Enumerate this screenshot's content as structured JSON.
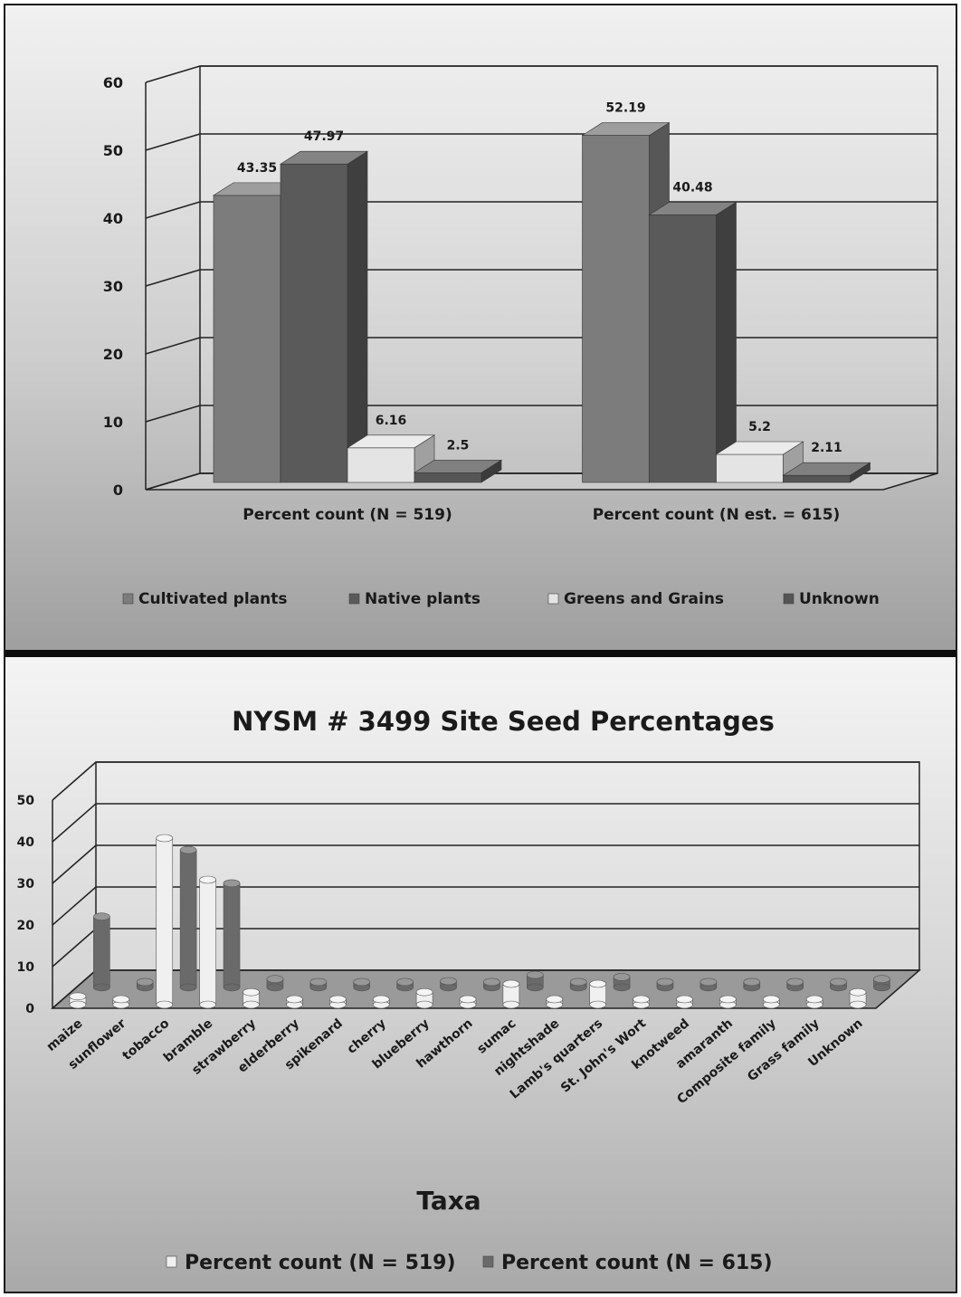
{
  "chart_data": [
    {
      "type": "bar",
      "title": "",
      "xlabel": "",
      "ylabel": "",
      "ylim": [
        0,
        60
      ],
      "yticks": [
        "0",
        "10",
        "20",
        "30",
        "40",
        "50",
        "60"
      ],
      "categories": [
        "Percent count (N = 519)",
        "Percent count (N est. = 615)"
      ],
      "series": [
        {
          "name": "Cultivated plants",
          "values": [
            43.35,
            52.19
          ],
          "labels": [
            "43.35",
            "52.19"
          ],
          "color": "#7c7c7c"
        },
        {
          "name": "Native plants",
          "values": [
            47.97,
            40.48
          ],
          "labels": [
            "47.97",
            "40.48"
          ],
          "color": "#5a5a5a"
        },
        {
          "name": "Greens and Grains",
          "values": [
            6.16,
            5.2
          ],
          "labels": [
            "6.16",
            "5.2"
          ],
          "color": "#e4e4e4"
        },
        {
          "name": "Unknown",
          "values": [
            2.5,
            2.11
          ],
          "labels": [
            "2.5",
            "2.11"
          ],
          "color": "#555555"
        }
      ],
      "legend_position": "bottom",
      "grid": true
    },
    {
      "type": "bar",
      "title": "NYSM # 3499 Site Seed Percentages",
      "xlabel": "Taxa",
      "ylabel": "",
      "ylim": [
        0,
        50
      ],
      "yticks": [
        "0",
        "10",
        "20",
        "30",
        "40",
        "50"
      ],
      "categories": [
        "maize",
        "sunflower",
        "tobacco",
        "bramble",
        "strawberry",
        "elderberry",
        "spikenard",
        "cherry",
        "blueberry",
        "hawthorn",
        "sumac",
        "nightshade",
        "Lamb's quarters",
        "St. John's Wort",
        "knotweed",
        "amaranth",
        "Composite family",
        "Grass family",
        "Unknown"
      ],
      "series": [
        {
          "name": "Percent count (N = 519)",
          "values": [
            2,
            0.5,
            40,
            30,
            3,
            1,
            0.5,
            1,
            3,
            0.5,
            5,
            0.5,
            5,
            1,
            0.5,
            0.5,
            0.5,
            0.5,
            3
          ],
          "color": "#f0f0f0"
        },
        {
          "name": "Percent count (N = 615)",
          "values": [
            17,
            0,
            33,
            25,
            2,
            0,
            0,
            0,
            1.5,
            0,
            3,
            0,
            2.5,
            0,
            0,
            0,
            0,
            0,
            2
          ],
          "color": "#6a6a6a"
        }
      ],
      "legend_position": "bottom",
      "grid": true
    }
  ]
}
